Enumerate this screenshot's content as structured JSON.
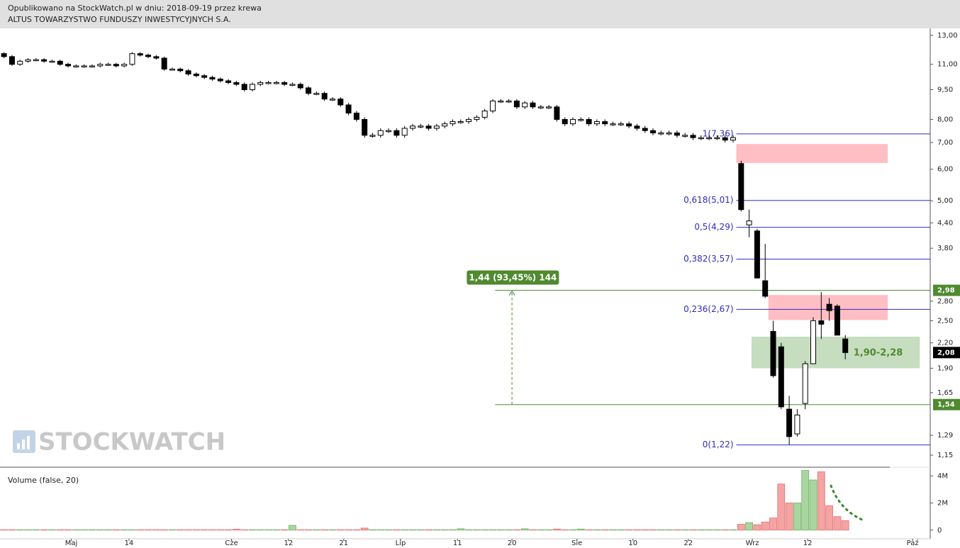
{
  "chart_data": {
    "type": "candlestick",
    "title": "Opublikowano na StockWatch.pl w dniu: 2018-09-19 przez krewa",
    "subtitle": "ALTUS TOWARZYSTWO FUNDUSZY INWESTYCYJNYCH S.A.",
    "log_scale": true,
    "xlim": [
      -0.5,
      115.6
    ],
    "xticks": [
      {
        "value": 8.4,
        "label": "Maj"
      },
      {
        "value": 15.6,
        "label": "14"
      },
      {
        "value": 28.4,
        "label": "Cze"
      },
      {
        "value": 35.5,
        "label": "12"
      },
      {
        "value": 42.4,
        "label": "21"
      },
      {
        "value": 49.5,
        "label": "Lip"
      },
      {
        "value": 56.6,
        "label": "11"
      },
      {
        "value": 63.4,
        "label": "20"
      },
      {
        "value": 71.5,
        "label": "Sie"
      },
      {
        "value": 78.5,
        "label": "10"
      },
      {
        "value": 85.4,
        "label": "22"
      },
      {
        "value": 93.4,
        "label": "Wrz"
      },
      {
        "value": 100.3,
        "label": "12"
      },
      {
        "value": 113.4,
        "label": "Paź"
      }
    ],
    "ylim": [
      1.077,
      13.54
    ],
    "yticks": [
      {
        "value": 13,
        "label": "13,00"
      },
      {
        "value": 11,
        "label": "11,00"
      },
      {
        "value": 9.5,
        "label": "9,50"
      },
      {
        "value": 8,
        "label": "8,00"
      },
      {
        "value": 7,
        "label": "7,00"
      },
      {
        "value": 6,
        "label": "6,00"
      },
      {
        "value": 5,
        "label": "5,00"
      },
      {
        "value": 4.4,
        "label": "4,40"
      },
      {
        "value": 3.8,
        "label": "3,80"
      },
      {
        "value": 2.8,
        "label": "2,80"
      },
      {
        "value": 2.5,
        "label": "2,50"
      },
      {
        "value": 2.2,
        "label": "2,20"
      },
      {
        "value": 1.9,
        "label": "1,90"
      },
      {
        "value": 1.65,
        "label": "1,65"
      },
      {
        "value": 1.29,
        "label": "1,29"
      },
      {
        "value": 1.15,
        "label": "1,15"
      }
    ],
    "open": [
      11.7,
      11.5,
      11.0,
      11.2,
      11.3,
      11.3,
      11.2,
      11.2,
      11.0,
      10.9,
      10.9,
      10.9,
      10.9,
      11.0,
      11.0,
      10.9,
      11.0,
      11.7,
      11.6,
      11.5,
      11.4,
      10.7,
      10.7,
      10.6,
      10.4,
      10.3,
      10.2,
      10.1,
      10.0,
      9.9,
      9.8,
      9.5,
      9.8,
      9.9,
      9.9,
      9.9,
      9.8,
      9.8,
      9.6,
      9.3,
      9.3,
      9.0,
      9.0,
      8.7,
      8.3,
      8.0,
      7.3,
      7.3,
      7.5,
      7.5,
      7.3,
      7.6,
      7.7,
      7.7,
      7.6,
      7.7,
      7.8,
      7.9,
      7.9,
      8.0,
      8.1,
      8.4,
      8.9,
      8.9,
      8.9,
      8.6,
      8.8,
      8.6,
      8.6,
      8.6,
      8.0,
      7.8,
      8.0,
      8.0,
      7.8,
      7.9,
      7.8,
      7.8,
      7.8,
      7.7,
      7.6,
      7.5,
      7.4,
      7.4,
      7.4,
      7.3,
      7.3,
      7.2,
      7.2,
      7.2,
      7.2,
      7.1,
      6.2,
      4.35,
      4.2,
      3.15,
      2.35,
      2.15,
      1.5,
      1.3,
      1.55,
      1.95,
      2.5,
      2.75,
      2.72,
      2.25
    ],
    "high": [
      11.8,
      11.6,
      11.3,
      11.4,
      11.4,
      11.4,
      11.3,
      11.3,
      11.1,
      11.0,
      11.0,
      11.0,
      11.1,
      11.1,
      11.1,
      11.1,
      11.8,
      11.8,
      11.7,
      11.6,
      11.5,
      10.8,
      10.8,
      10.7,
      10.5,
      10.4,
      10.3,
      10.2,
      10.1,
      10.0,
      9.9,
      9.9,
      10.0,
      10.0,
      10.0,
      10.0,
      9.9,
      9.9,
      9.7,
      9.4,
      9.4,
      9.1,
      9.1,
      8.8,
      8.4,
      8.1,
      7.4,
      7.6,
      7.6,
      7.6,
      7.7,
      7.8,
      7.8,
      7.8,
      7.8,
      7.9,
      8.0,
      8.0,
      8.1,
      8.2,
      8.5,
      9.0,
      9.0,
      9.0,
      9.0,
      8.9,
      8.9,
      8.7,
      8.7,
      8.7,
      8.1,
      8.1,
      8.1,
      8.1,
      8.0,
      8.0,
      7.9,
      7.9,
      7.9,
      7.8,
      7.7,
      7.6,
      7.5,
      7.5,
      7.5,
      7.4,
      7.4,
      7.3,
      7.3,
      7.3,
      7.3,
      7.3,
      6.3,
      4.75,
      4.25,
      3.9,
      2.5,
      2.2,
      1.62,
      1.5,
      1.98,
      2.55,
      2.95,
      2.85,
      2.75,
      2.3
    ],
    "low": [
      11.4,
      10.9,
      10.9,
      11.1,
      11.2,
      11.1,
      11.1,
      10.9,
      10.8,
      10.8,
      10.8,
      10.8,
      10.8,
      10.9,
      10.8,
      10.8,
      10.9,
      11.5,
      11.4,
      11.3,
      10.6,
      10.6,
      10.5,
      10.3,
      10.2,
      10.1,
      10.0,
      9.9,
      9.8,
      9.7,
      9.4,
      9.4,
      9.7,
      9.8,
      9.8,
      9.7,
      9.7,
      9.5,
      9.2,
      9.2,
      8.9,
      8.9,
      8.6,
      8.2,
      7.9,
      7.2,
      7.2,
      7.2,
      7.4,
      7.2,
      7.2,
      7.5,
      7.6,
      7.5,
      7.5,
      7.6,
      7.7,
      7.8,
      7.8,
      7.9,
      8.0,
      8.3,
      8.8,
      8.8,
      8.5,
      8.5,
      8.5,
      8.5,
      8.5,
      7.9,
      7.7,
      7.7,
      7.9,
      7.7,
      7.7,
      7.7,
      7.7,
      7.7,
      7.6,
      7.5,
      7.4,
      7.3,
      7.3,
      7.3,
      7.2,
      7.2,
      7.1,
      7.1,
      7.1,
      7.1,
      7.0,
      7.0,
      4.7,
      4.05,
      3.2,
      2.85,
      1.8,
      1.5,
      1.22,
      1.28,
      1.5,
      1.95,
      2.25,
      2.5,
      2.3,
      2.0
    ],
    "close": [
      11.5,
      11.0,
      11.2,
      11.3,
      11.3,
      11.2,
      11.2,
      11.0,
      10.9,
      10.9,
      10.9,
      10.9,
      11.0,
      11.0,
      10.9,
      11.0,
      11.7,
      11.6,
      11.5,
      11.4,
      10.7,
      10.7,
      10.6,
      10.4,
      10.3,
      10.2,
      10.1,
      10.0,
      9.9,
      9.8,
      9.5,
      9.8,
      9.9,
      9.9,
      9.9,
      9.8,
      9.8,
      9.6,
      9.3,
      9.3,
      9.0,
      9.0,
      8.7,
      8.3,
      8.0,
      7.3,
      7.3,
      7.5,
      7.5,
      7.3,
      7.6,
      7.7,
      7.7,
      7.6,
      7.7,
      7.8,
      7.9,
      7.9,
      8.0,
      8.1,
      8.4,
      8.9,
      8.9,
      8.9,
      8.6,
      8.8,
      8.6,
      8.6,
      8.6,
      8.0,
      7.8,
      8.0,
      8.0,
      7.8,
      7.9,
      7.8,
      7.8,
      7.8,
      7.7,
      7.6,
      7.5,
      7.4,
      7.4,
      7.4,
      7.3,
      7.3,
      7.2,
      7.2,
      7.2,
      7.2,
      7.1,
      7.2,
      4.75,
      4.45,
      3.2,
      2.88,
      1.82,
      1.52,
      1.28,
      1.45,
      1.95,
      2.5,
      2.45,
      2.65,
      2.3,
      2.08
    ],
    "volume": [
      30000,
      30000,
      30000,
      30000,
      30000,
      30000,
      30000,
      30000,
      30000,
      30000,
      30000,
      30000,
      30000,
      30000,
      30000,
      30000,
      30000,
      30000,
      30000,
      30000,
      30000,
      30000,
      30000,
      30000,
      30000,
      30000,
      30000,
      30000,
      30000,
      70000,
      30000,
      30000,
      30000,
      30000,
      30000,
      30000,
      350000,
      30000,
      30000,
      30000,
      30000,
      30000,
      30000,
      30000,
      30000,
      150000,
      30000,
      30000,
      30000,
      30000,
      30000,
      30000,
      30000,
      30000,
      30000,
      30000,
      30000,
      100000,
      30000,
      30000,
      30000,
      30000,
      30000,
      30000,
      30000,
      100000,
      30000,
      30000,
      30000,
      80000,
      30000,
      30000,
      80000,
      30000,
      30000,
      30000,
      30000,
      30000,
      30000,
      30000,
      30000,
      30000,
      30000,
      30000,
      30000,
      30000,
      30000,
      30000,
      30000,
      30000,
      30000,
      30000,
      430000,
      550000,
      400000,
      600000,
      900000,
      3400000,
      2000000,
      2000000,
      4400000,
      3700000,
      4300000,
      1800000,
      1000000,
      700000
    ],
    "volume_title": "Volume (false, 20)",
    "volume_ylim": [
      -640000,
      4590000
    ],
    "volume_yticks": [
      {
        "value": 4000000,
        "label": "4M"
      },
      {
        "value": 2000000,
        "label": "2M"
      },
      0
    ],
    "up_color": "#a9d6a0",
    "down_color": "#f5a3a3",
    "fib_color": "#2d2dbf",
    "fib_x_start": 91.4,
    "fibs": [
      {
        "value": 7.36,
        "label": "1(7,36)"
      },
      {
        "value": 5.01,
        "label": "0,618(5,01)"
      },
      {
        "value": 4.29,
        "label": "0,5(4,29)"
      },
      {
        "value": 3.57,
        "label": "0,382(3,57)"
      },
      {
        "value": 2.67,
        "label": "0,236(2,67)"
      },
      {
        "value": 1.22,
        "label": "0(1,22)"
      }
    ],
    "zones": [
      {
        "x": [
          91.4,
          110.3
        ],
        "low": 6.22,
        "high": 6.94,
        "color": "#ffb3b8"
      },
      {
        "x": [
          95.4,
          110.3
        ],
        "low": 2.51,
        "high": 2.9,
        "color": "#ffb3b8"
      },
      {
        "x": [
          93.3,
          114.3
        ],
        "low": 1.9,
        "high": 2.28,
        "color": "#bcd7b4",
        "label": "1,90-2,28",
        "label_color": "#4f8a2f"
      }
    ],
    "measure": {
      "from": 1.54,
      "to": 2.98,
      "x": 63.4,
      "x_start": 61.3,
      "label": "1,44 (93,45%) 144",
      "color": "#4f8a2f"
    },
    "price_labels": [
      {
        "value": 2.98,
        "label": "2,98",
        "color": "#4f8a2f"
      },
      {
        "value": 2.08,
        "label": "2,08",
        "color": "#000000"
      },
      {
        "value": 1.54,
        "label": "1,54",
        "color": "#4f8a2f"
      }
    ],
    "watermark": "STOCKWATCH"
  }
}
